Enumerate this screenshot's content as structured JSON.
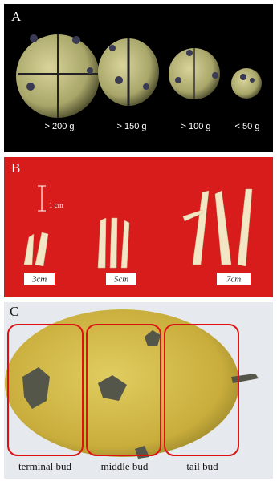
{
  "panels": [
    {
      "label": "A",
      "captions": [
        "> 200 g",
        "> 150 g",
        "> 100 g",
        "< 50 g"
      ]
    },
    {
      "label": "B",
      "scale": "1 cm",
      "captions": [
        "3cm",
        "5cm",
        "7cm"
      ]
    },
    {
      "label": "C",
      "captions": [
        "terminal bud",
        "middle bud",
        "tail bud"
      ]
    }
  ]
}
